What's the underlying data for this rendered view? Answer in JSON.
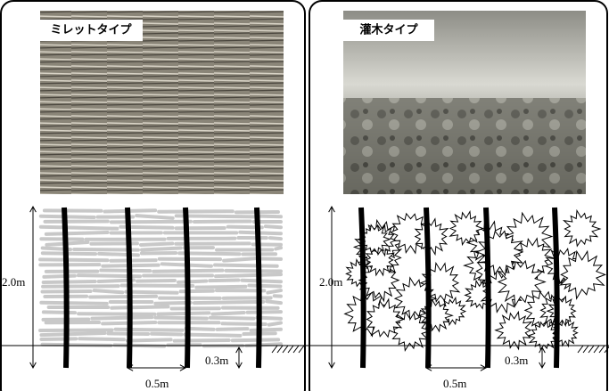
{
  "panels": [
    {
      "label": "ミレットタイプ",
      "height_label": "2.0m",
      "depth_label": "0.3m",
      "spacing_label": "0.5m"
    },
    {
      "label": "灌木タイプ",
      "height_label": "2.0m",
      "depth_label": "0.3m",
      "spacing_label": "0.5m"
    }
  ]
}
